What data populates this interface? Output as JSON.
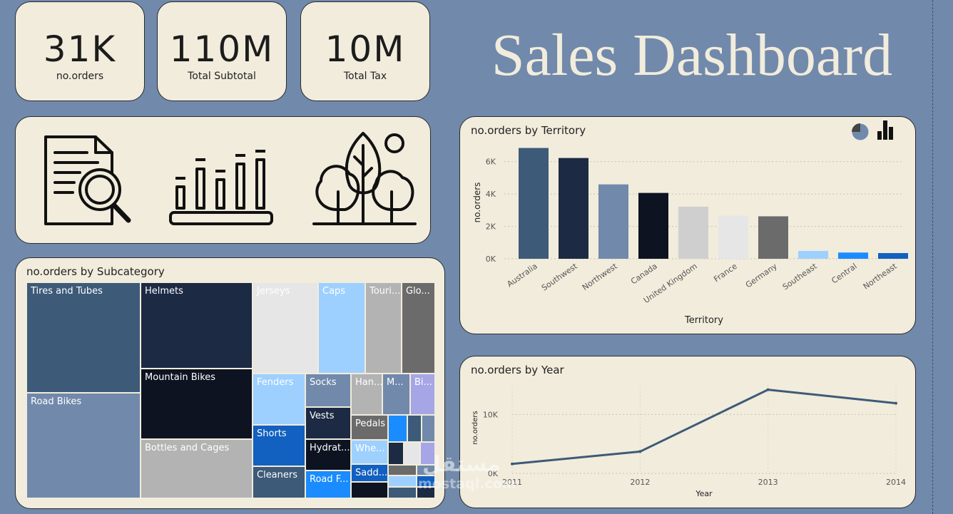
{
  "kpis": [
    {
      "value": "31K",
      "label": "no.orders"
    },
    {
      "value": "110M",
      "label": "Total Subtotal"
    },
    {
      "value": "10M",
      "label": "Total Tax"
    }
  ],
  "title": "Sales Dashboard",
  "icons": [
    "document-search-icon",
    "bar-chart-icon",
    "trees-icon"
  ],
  "treemap": {
    "title": "no.orders by Subcategory",
    "cells": [
      {
        "label": "Tires and Tubes",
        "color": "#3d5a78"
      },
      {
        "label": "Road Bikes",
        "color": "#7189ab"
      },
      {
        "label": "Helmets",
        "color": "#1c2a43"
      },
      {
        "label": "Mountain Bikes",
        "color": "#0e1322"
      },
      {
        "label": "Bottles and Cages",
        "color": "#b3b3b3"
      },
      {
        "label": "Jerseys",
        "color": "#e6e6e6"
      },
      {
        "label": "Caps",
        "color": "#9ed0ff"
      },
      {
        "label": "Touri...",
        "color": "#b3b3b3"
      },
      {
        "label": "Glo...",
        "color": "#6b6b6b"
      },
      {
        "label": "Fenders",
        "color": "#9ed0ff"
      },
      {
        "label": "Shorts",
        "color": "#1260c0"
      },
      {
        "label": "Cleaners",
        "color": "#3d5a78"
      },
      {
        "label": "Socks",
        "color": "#7189ab"
      },
      {
        "label": "Vests",
        "color": "#1c2a43"
      },
      {
        "label": "Hydrat...",
        "color": "#0e1322"
      },
      {
        "label": "Road F...",
        "color": "#1a8cff"
      },
      {
        "label": "Han...",
        "color": "#b3b3b3"
      },
      {
        "label": "M...",
        "color": "#7189ab"
      },
      {
        "label": "Bi...",
        "color": "#a6a6e6"
      },
      {
        "label": "Pedals",
        "color": "#6b6b6b"
      },
      {
        "label": "Whe...",
        "color": "#9ed0ff"
      },
      {
        "label": "Sadd...",
        "color": "#1260c0"
      },
      {
        "label": "",
        "color": "#1a8cff"
      },
      {
        "label": "",
        "color": "#3d5a78"
      },
      {
        "label": "",
        "color": "#7189ab"
      },
      {
        "label": "",
        "color": "#1c2a43"
      },
      {
        "label": "",
        "color": "#e6e6e6"
      },
      {
        "label": "",
        "color": "#a6a6e6"
      },
      {
        "label": "",
        "color": "#0e1322"
      },
      {
        "label": "",
        "color": "#6b6b6b"
      },
      {
        "label": "",
        "color": "#9ed0ff"
      },
      {
        "label": "",
        "color": "#3d5a78"
      },
      {
        "label": "",
        "color": "#7189ab"
      },
      {
        "label": "",
        "color": "#1260c0"
      },
      {
        "label": "",
        "color": "#1c2a43"
      }
    ]
  },
  "chart_data": [
    {
      "type": "bar",
      "title": "no.orders by Territory",
      "xlabel": "Territory",
      "ylabel": "no.orders",
      "categories": [
        "Australia",
        "Southwest",
        "Northwest",
        "Canada",
        "United Kingdom",
        "France",
        "Germany",
        "Southeast",
        "Central",
        "Northeast"
      ],
      "values": [
        6843,
        6224,
        4594,
        4067,
        3219,
        2672,
        2623,
        486,
        385,
        352
      ],
      "colors": [
        "#3d5a78",
        "#1c2a43",
        "#7189ab",
        "#0e1322",
        "#cfcfcf",
        "#e6e6e6",
        "#6b6b6b",
        "#9ed0ff",
        "#1a8cff",
        "#1260c0"
      ],
      "yticks": [
        "0K",
        "2K",
        "4K",
        "6K"
      ],
      "ylim": [
        0,
        7000
      ],
      "grid": true,
      "legend": "none",
      "view_icons": [
        "pie-chart-icon",
        "bar-chart-icon"
      ]
    },
    {
      "type": "line",
      "title": "no.orders by Year",
      "xlabel": "Year",
      "ylabel": "no.orders",
      "x": [
        "2011",
        "2012",
        "2013",
        "2014"
      ],
      "values": [
        1600,
        3700,
        14200,
        11900
      ],
      "yticks": [
        "0K",
        "10K"
      ],
      "ylim": [
        0,
        15000
      ],
      "color": "#3d5a78",
      "grid": true,
      "legend": "none"
    }
  ],
  "watermark": {
    "arabic": "مستقل",
    "latin": "mostaql.com"
  }
}
